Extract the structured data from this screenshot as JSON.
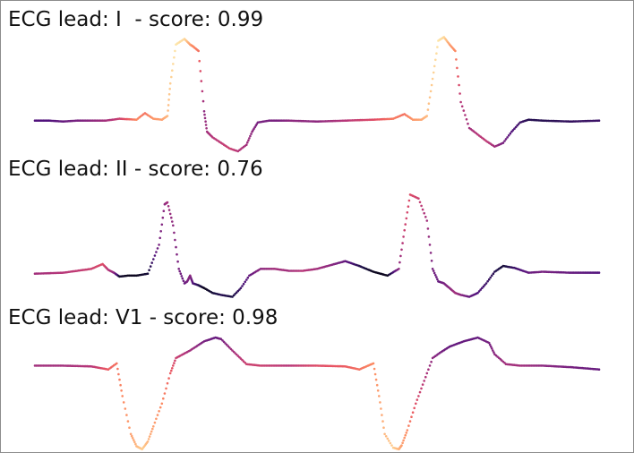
{
  "chart_data": [
    {
      "type": "scatter",
      "title": "ECG lead: I  - score: 0.99",
      "xlim": [
        0,
        2
      ],
      "ylim": [
        -0.35,
        1.0
      ],
      "x": [
        0.0,
        0.05,
        0.1,
        0.15,
        0.2,
        0.25,
        0.3,
        0.36,
        0.39,
        0.42,
        0.45,
        0.47,
        0.48,
        0.5,
        0.53,
        0.55,
        0.56,
        0.58,
        0.6,
        0.61,
        0.63,
        0.66,
        0.69,
        0.72,
        0.75,
        0.77,
        0.79,
        0.83,
        0.86,
        0.9,
        1.0,
        1.1,
        1.2,
        1.27,
        1.31,
        1.34,
        1.37,
        1.39,
        1.41,
        1.43,
        1.45,
        1.47,
        1.49,
        1.51,
        1.54,
        1.57,
        1.6,
        1.63,
        1.66,
        1.69,
        1.72,
        1.75,
        1.8,
        1.9,
        2.0
      ],
      "y": [
        0.0,
        0.0,
        -0.01,
        0.0,
        0.0,
        0.0,
        0.02,
        0.01,
        0.08,
        0.02,
        0.01,
        0.05,
        0.4,
        0.82,
        0.88,
        0.82,
        0.8,
        0.75,
        0.1,
        -0.12,
        -0.18,
        -0.24,
        -0.3,
        -0.33,
        -0.26,
        -0.12,
        -0.02,
        0.0,
        0.0,
        0.0,
        -0.01,
        0.0,
        0.01,
        0.02,
        0.07,
        0.01,
        0.01,
        0.05,
        0.45,
        0.86,
        0.9,
        0.82,
        0.75,
        0.2,
        -0.08,
        -0.15,
        -0.22,
        -0.28,
        -0.24,
        -0.12,
        -0.02,
        0.01,
        0.0,
        -0.01,
        0.0
      ],
      "c": [
        0.25,
        0.25,
        0.3,
        0.35,
        0.4,
        0.45,
        0.55,
        0.75,
        0.7,
        0.78,
        0.8,
        0.85,
        0.9,
        0.95,
        0.92,
        0.8,
        0.75,
        0.7,
        0.4,
        0.45,
        0.5,
        0.52,
        0.55,
        0.5,
        0.45,
        0.4,
        0.35,
        0.35,
        0.35,
        0.4,
        0.4,
        0.5,
        0.6,
        0.72,
        0.7,
        0.78,
        0.82,
        0.86,
        0.9,
        0.95,
        0.92,
        0.8,
        0.75,
        0.5,
        0.45,
        0.5,
        0.52,
        0.45,
        0.35,
        0.25,
        0.2,
        0.15,
        0.15,
        0.18,
        0.2
      ]
    },
    {
      "type": "scatter",
      "title": "ECG lead: II - score: 0.76",
      "xlim": [
        0,
        2
      ],
      "ylim": [
        -0.3,
        1.0
      ],
      "x": [
        0.0,
        0.1,
        0.2,
        0.24,
        0.26,
        0.28,
        0.3,
        0.33,
        0.36,
        0.4,
        0.44,
        0.46,
        0.47,
        0.49,
        0.51,
        0.53,
        0.54,
        0.55,
        0.56,
        0.58,
        0.6,
        0.63,
        0.66,
        0.7,
        0.73,
        0.76,
        0.8,
        0.85,
        0.9,
        0.95,
        1.0,
        1.05,
        1.1,
        1.15,
        1.2,
        1.25,
        1.29,
        1.31,
        1.33,
        1.36,
        1.39,
        1.41,
        1.43,
        1.45,
        1.47,
        1.49,
        1.51,
        1.54,
        1.57,
        1.6,
        1.63,
        1.66,
        1.7,
        1.75,
        1.8,
        1.9,
        2.0
      ],
      "y": [
        0.0,
        0.01,
        0.05,
        0.1,
        0.04,
        0.01,
        -0.03,
        -0.02,
        -0.02,
        0.0,
        0.3,
        0.72,
        0.74,
        0.5,
        0.05,
        -0.1,
        -0.08,
        -0.02,
        -0.1,
        -0.12,
        -0.15,
        -0.2,
        -0.22,
        -0.24,
        -0.15,
        -0.02,
        0.05,
        0.05,
        0.03,
        0.03,
        0.05,
        0.09,
        0.13,
        0.08,
        0.02,
        -0.02,
        0.05,
        0.45,
        0.82,
        0.78,
        0.55,
        0.05,
        -0.08,
        -0.1,
        -0.15,
        -0.2,
        -0.22,
        -0.24,
        -0.2,
        -0.1,
        0.02,
        0.08,
        0.06,
        0.01,
        0.02,
        0.01,
        0.01
      ],
      "c": [
        0.45,
        0.5,
        0.55,
        0.6,
        0.5,
        0.4,
        0.08,
        0.05,
        0.05,
        0.1,
        0.35,
        0.4,
        0.45,
        0.4,
        0.35,
        0.3,
        0.35,
        0.4,
        0.25,
        0.15,
        0.05,
        0.1,
        0.15,
        0.12,
        0.2,
        0.3,
        0.4,
        0.45,
        0.45,
        0.5,
        0.45,
        0.4,
        0.3,
        0.15,
        0.05,
        0.05,
        0.4,
        0.55,
        0.6,
        0.55,
        0.45,
        0.35,
        0.3,
        0.35,
        0.4,
        0.45,
        0.4,
        0.3,
        0.25,
        0.2,
        0.15,
        0.1,
        0.2,
        0.3,
        0.35,
        0.3,
        0.25
      ]
    },
    {
      "type": "scatter",
      "title": "ECG lead: V1 - score: 0.98",
      "xlim": [
        0,
        2
      ],
      "ylim": [
        -1.15,
        0.5
      ],
      "x": [
        0.0,
        0.1,
        0.2,
        0.26,
        0.29,
        0.31,
        0.34,
        0.36,
        0.38,
        0.4,
        0.42,
        0.45,
        0.48,
        0.5,
        0.55,
        0.6,
        0.64,
        0.66,
        0.7,
        0.75,
        0.8,
        0.9,
        1.0,
        1.1,
        1.15,
        1.2,
        1.22,
        1.24,
        1.27,
        1.29,
        1.3,
        1.32,
        1.35,
        1.38,
        1.41,
        1.44,
        1.47,
        1.52,
        1.57,
        1.61,
        1.63,
        1.67,
        1.72,
        1.8,
        1.9,
        2.0
      ],
      "y": [
        0.0,
        0.0,
        -0.01,
        -0.05,
        0.03,
        -0.4,
        -0.9,
        -1.06,
        -1.1,
        -1.0,
        -0.8,
        -0.5,
        -0.1,
        0.1,
        0.2,
        0.32,
        0.37,
        0.35,
        0.2,
        0.02,
        0.0,
        0.0,
        0.0,
        -0.01,
        -0.05,
        0.03,
        -0.4,
        -0.9,
        -1.08,
        -1.1,
        -1.05,
        -0.85,
        -0.5,
        -0.2,
        0.1,
        0.18,
        0.25,
        0.32,
        0.37,
        0.3,
        0.15,
        0.02,
        0.0,
        0.0,
        -0.02,
        -0.05
      ],
      "c": [
        0.45,
        0.45,
        0.5,
        0.65,
        0.7,
        0.75,
        0.8,
        0.85,
        0.9,
        0.85,
        0.8,
        0.75,
        0.65,
        0.55,
        0.45,
        0.35,
        0.3,
        0.35,
        0.45,
        0.55,
        0.55,
        0.5,
        0.6,
        0.65,
        0.7,
        0.75,
        0.8,
        0.85,
        0.9,
        0.85,
        0.8,
        0.75,
        0.6,
        0.5,
        0.4,
        0.35,
        0.3,
        0.3,
        0.3,
        0.35,
        0.4,
        0.45,
        0.45,
        0.4,
        0.35,
        0.3
      ]
    }
  ],
  "colormap": [
    "#000004",
    "#1d1147",
    "#51127c",
    "#822681",
    "#b73779",
    "#e75263",
    "#fc8961",
    "#fec287",
    "#fcfdbf"
  ]
}
